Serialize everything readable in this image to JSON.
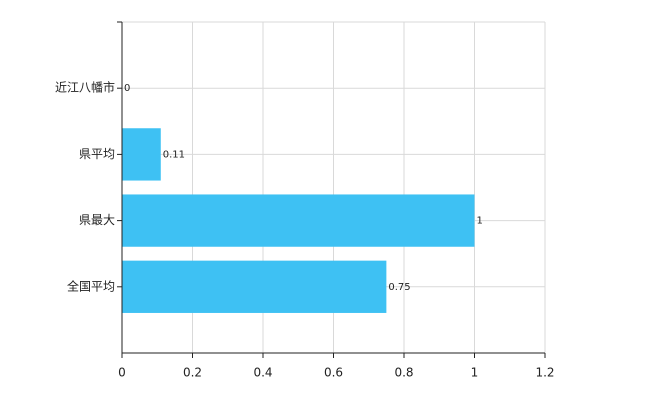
{
  "chart_data": {
    "type": "bar",
    "orientation": "horizontal",
    "categories": [
      "近江八幡市",
      "県平均",
      "県最大",
      "全国平均"
    ],
    "values": [
      0,
      0.11,
      1,
      0.75
    ],
    "color": "#3ec1f3",
    "xlim": [
      0,
      1.2
    ],
    "xticks": [
      0,
      0.2,
      0.4,
      0.6,
      0.8,
      1,
      1.2
    ],
    "grid": true
  }
}
